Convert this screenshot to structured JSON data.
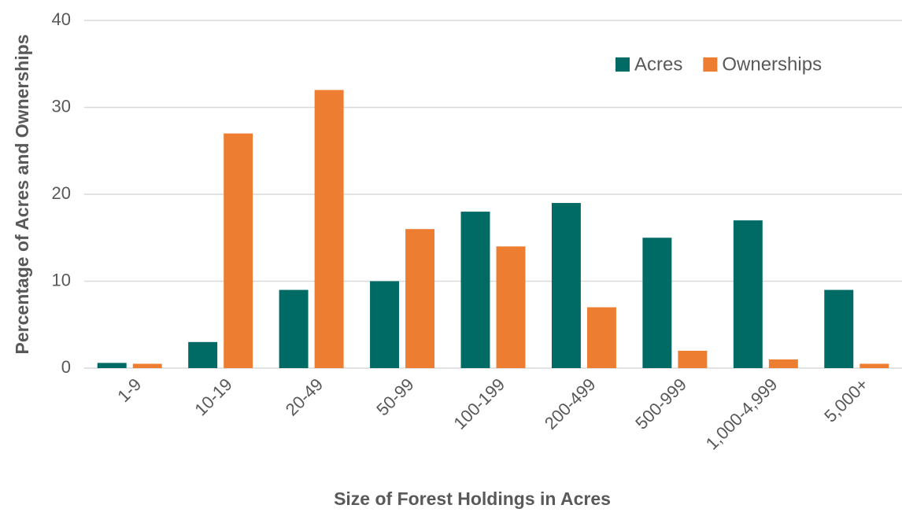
{
  "chart_data": {
    "type": "bar",
    "x_label": "Size of Forest Holdings in Acres",
    "y_label": "Percentage of Acres and Ownerships",
    "categories": [
      "1-9",
      "10-19",
      "20-49",
      "50-99",
      "100-199",
      "200-499",
      "500-999",
      "1,000-4,999",
      "5,000+"
    ],
    "series": [
      {
        "name": "Acres",
        "color": "#006a64",
        "values": [
          0.6,
          3,
          9,
          10,
          18,
          19,
          15,
          17,
          9
        ]
      },
      {
        "name": "Ownerships",
        "color": "#ed7d31",
        "values": [
          0.5,
          27,
          32,
          16,
          14,
          7,
          2,
          1,
          0.5
        ]
      }
    ],
    "ylim": [
      0,
      40
    ],
    "yticks": [
      0,
      10,
      20,
      30,
      40
    ],
    "grid": true,
    "legend": "upper right"
  }
}
